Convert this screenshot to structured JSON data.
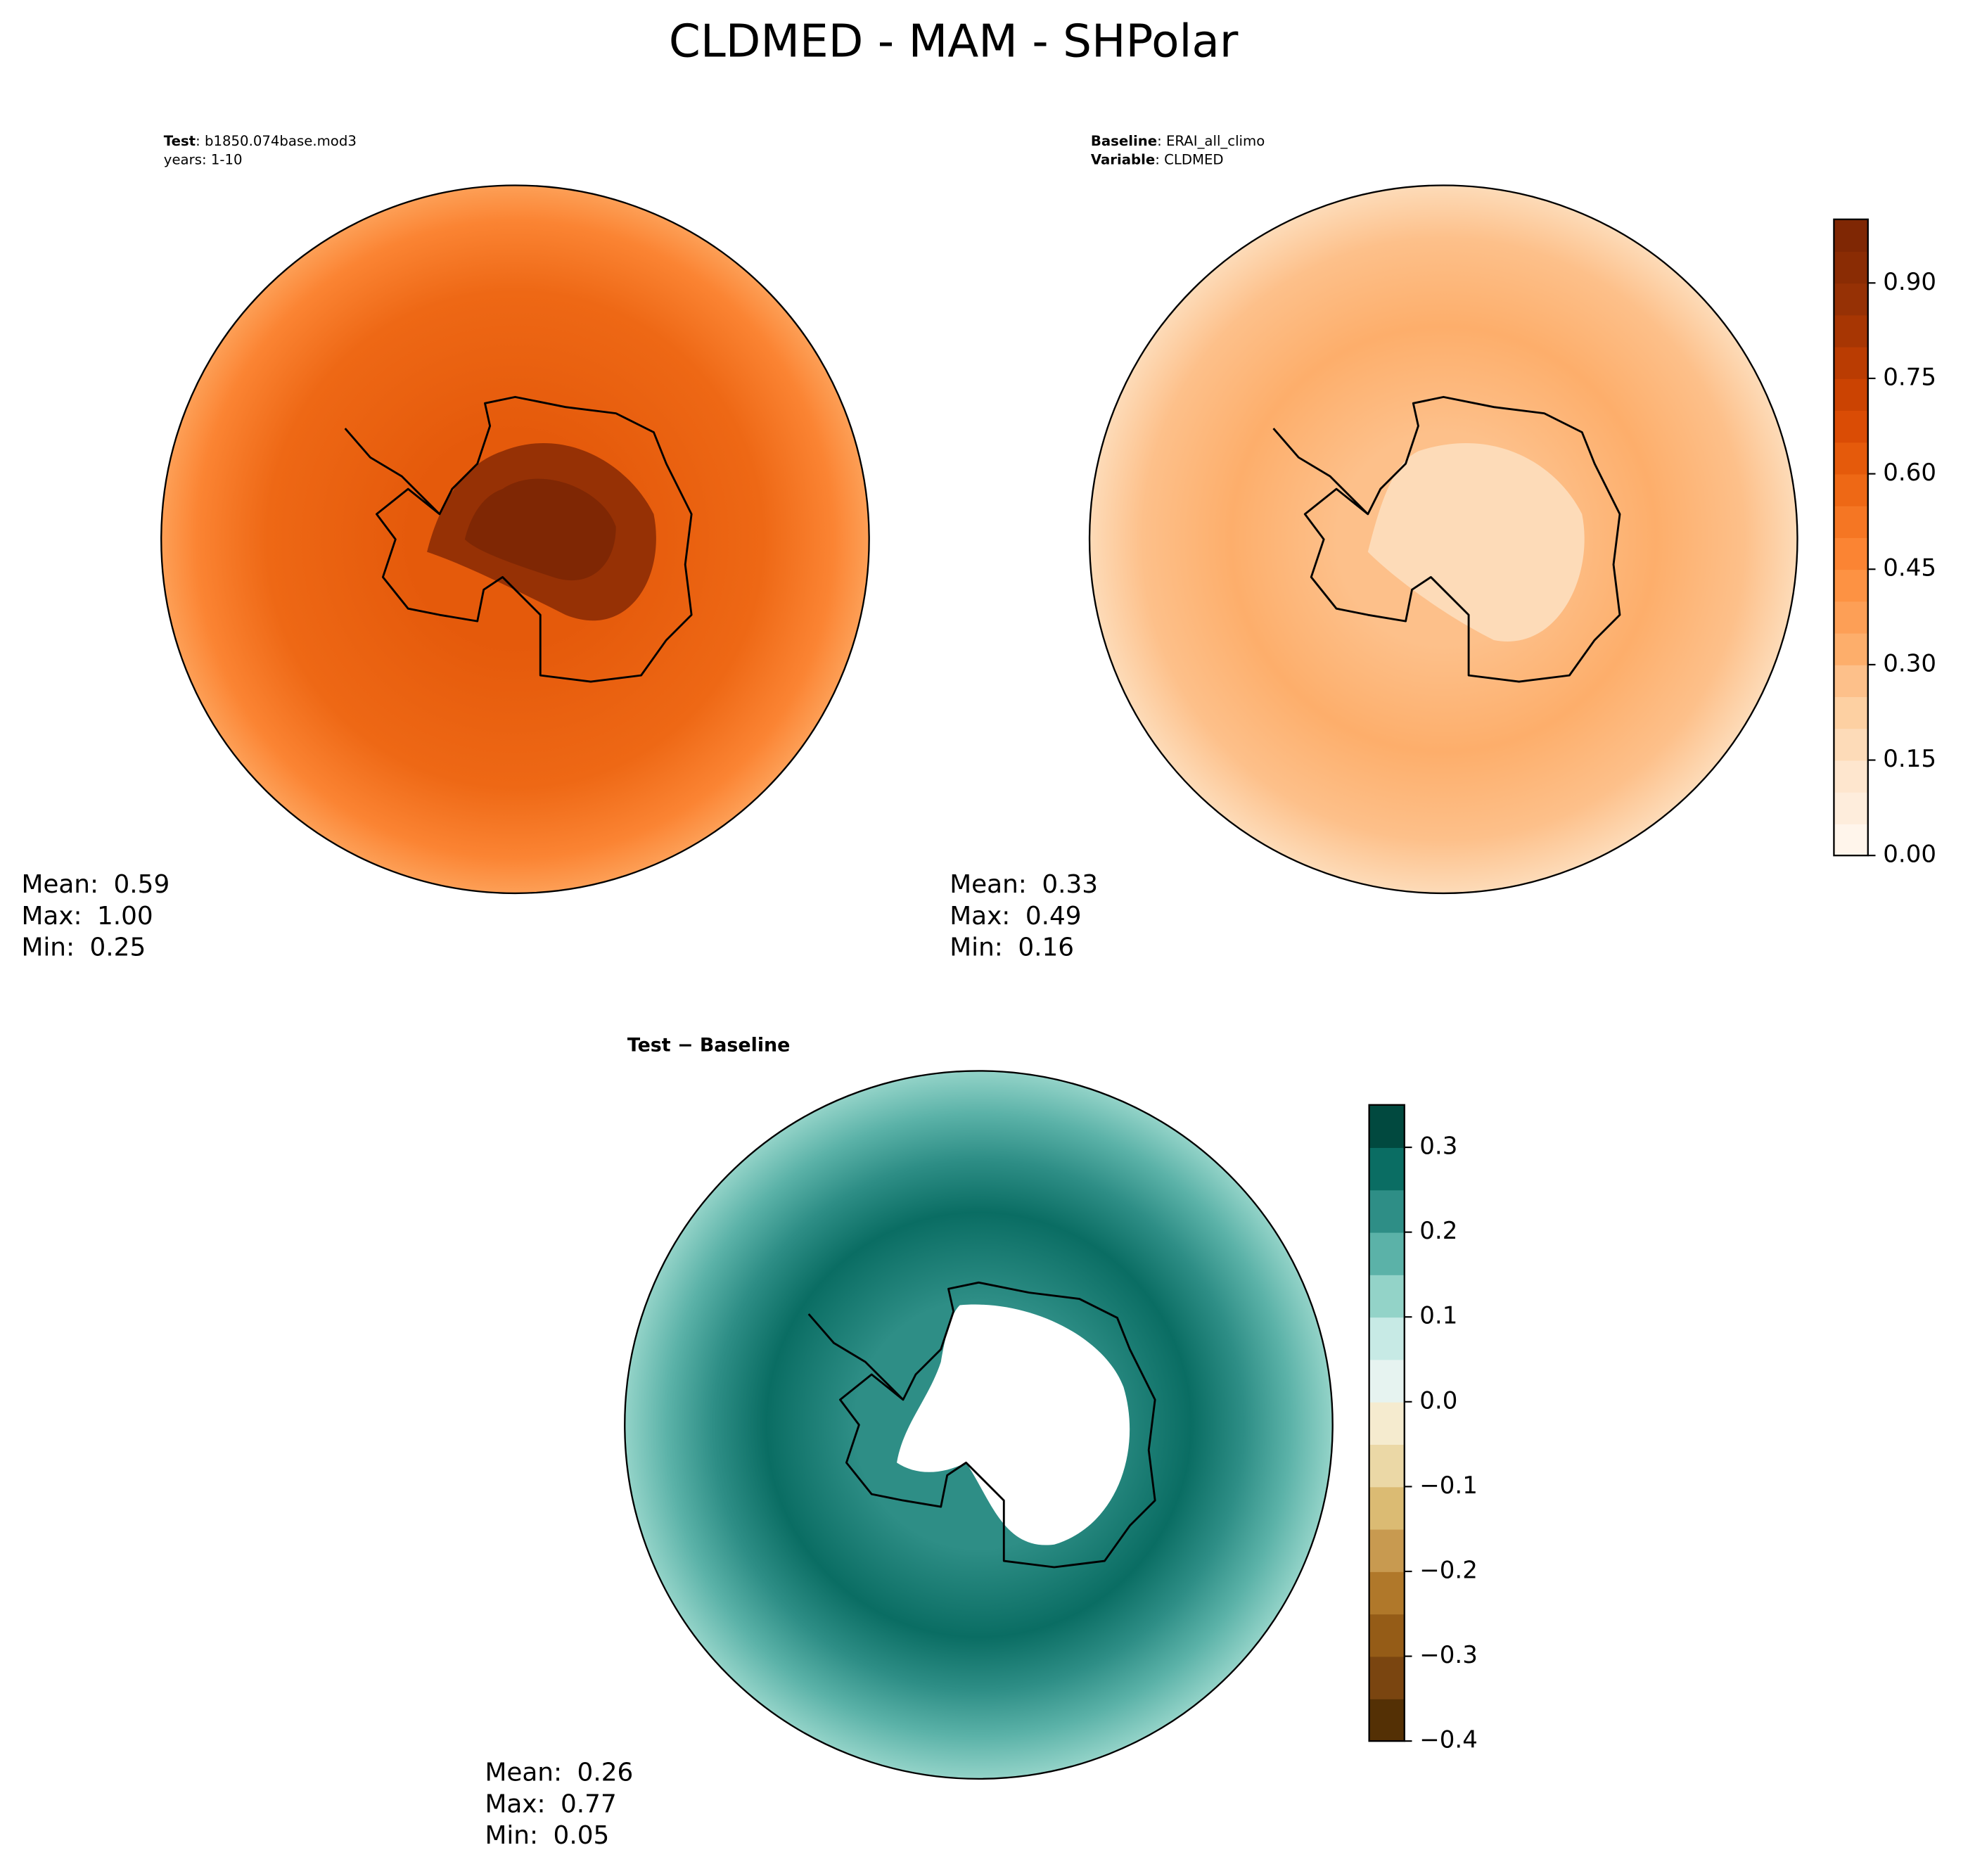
{
  "title": "CLDMED - MAM - SHPolar",
  "panels": [
    {
      "header_lines": [
        {
          "bold": "Test",
          "text": ": b1850.074base.mod3"
        },
        {
          "text": "years: 1-10"
        }
      ],
      "stats": [
        {
          "label": "Mean:",
          "value": "0.59"
        },
        {
          "label": "Max:",
          "value": "1.00"
        },
        {
          "label": "Min:",
          "value": "0.25"
        }
      ]
    },
    {
      "header_lines": [
        {
          "bold": "Baseline",
          "text": ": ERAI_all_climo"
        },
        {
          "bold": "Variable",
          "text": ": CLDMED"
        }
      ],
      "stats": [
        {
          "label": "Mean:",
          "value": "0.33"
        },
        {
          "label": "Max:",
          "value": "0.49"
        },
        {
          "label": "Min:",
          "value": "0.16"
        }
      ]
    },
    {
      "header_lines": [
        {
          "bold": "Test − Baseline"
        }
      ],
      "stats": [
        {
          "label": "Mean:",
          "value": "0.26"
        },
        {
          "label": "Max:",
          "value": "0.77"
        },
        {
          "label": "Min:",
          "value": "0.05"
        }
      ]
    }
  ],
  "colorbars": [
    {
      "lim": [
        0,
        1
      ],
      "ticks": [
        {
          "value": 0,
          "label": "0.00"
        },
        0.15,
        {
          "value": 0.3,
          "label": "0.30"
        },
        0.45,
        {
          "value": 0.6,
          "label": "0.60"
        },
        0.75,
        {
          "value": 0.9,
          "label": "0.90"
        }
      ],
      "colors": [
        "#fff5eb",
        "#feeddc",
        "#fee6ce",
        "#fddbb8",
        "#fdd0a2",
        "#fdc08a",
        "#fdae6b",
        "#fd9f56",
        "#fd9243",
        "#fb8433",
        "#f57623",
        "#ee6815",
        "#e55a0b",
        "#da4c05",
        "#cb4302",
        "#ba3c02",
        "#a73603",
        "#963105",
        "#8a2c04",
        "#7f2704"
      ]
    },
    {
      "lim": [
        -0.4,
        0.35
      ],
      "ticks": [
        {
          "value": -0.4,
          "label": "−0.4"
        },
        {
          "value": -0.3,
          "label": "−0.3"
        },
        {
          "value": -0.2,
          "label": "−0.2"
        },
        {
          "value": -0.1,
          "label": "−0.1"
        },
        {
          "value": 0,
          "label": "0.0"
        },
        0.1,
        0.2,
        0.3
      ],
      "colors": [
        "#543005",
        "#7a4510",
        "#955c17",
        "#b0782a",
        "#c89a50",
        "#dbbb73",
        "#ebd8a6",
        "#f5ebcf",
        "#e6f3f0",
        "#c7eae5",
        "#93d3c8",
        "#5bb2a8",
        "#2e8e86",
        "#0a6d63",
        "#01493f"
      ]
    }
  ]
}
